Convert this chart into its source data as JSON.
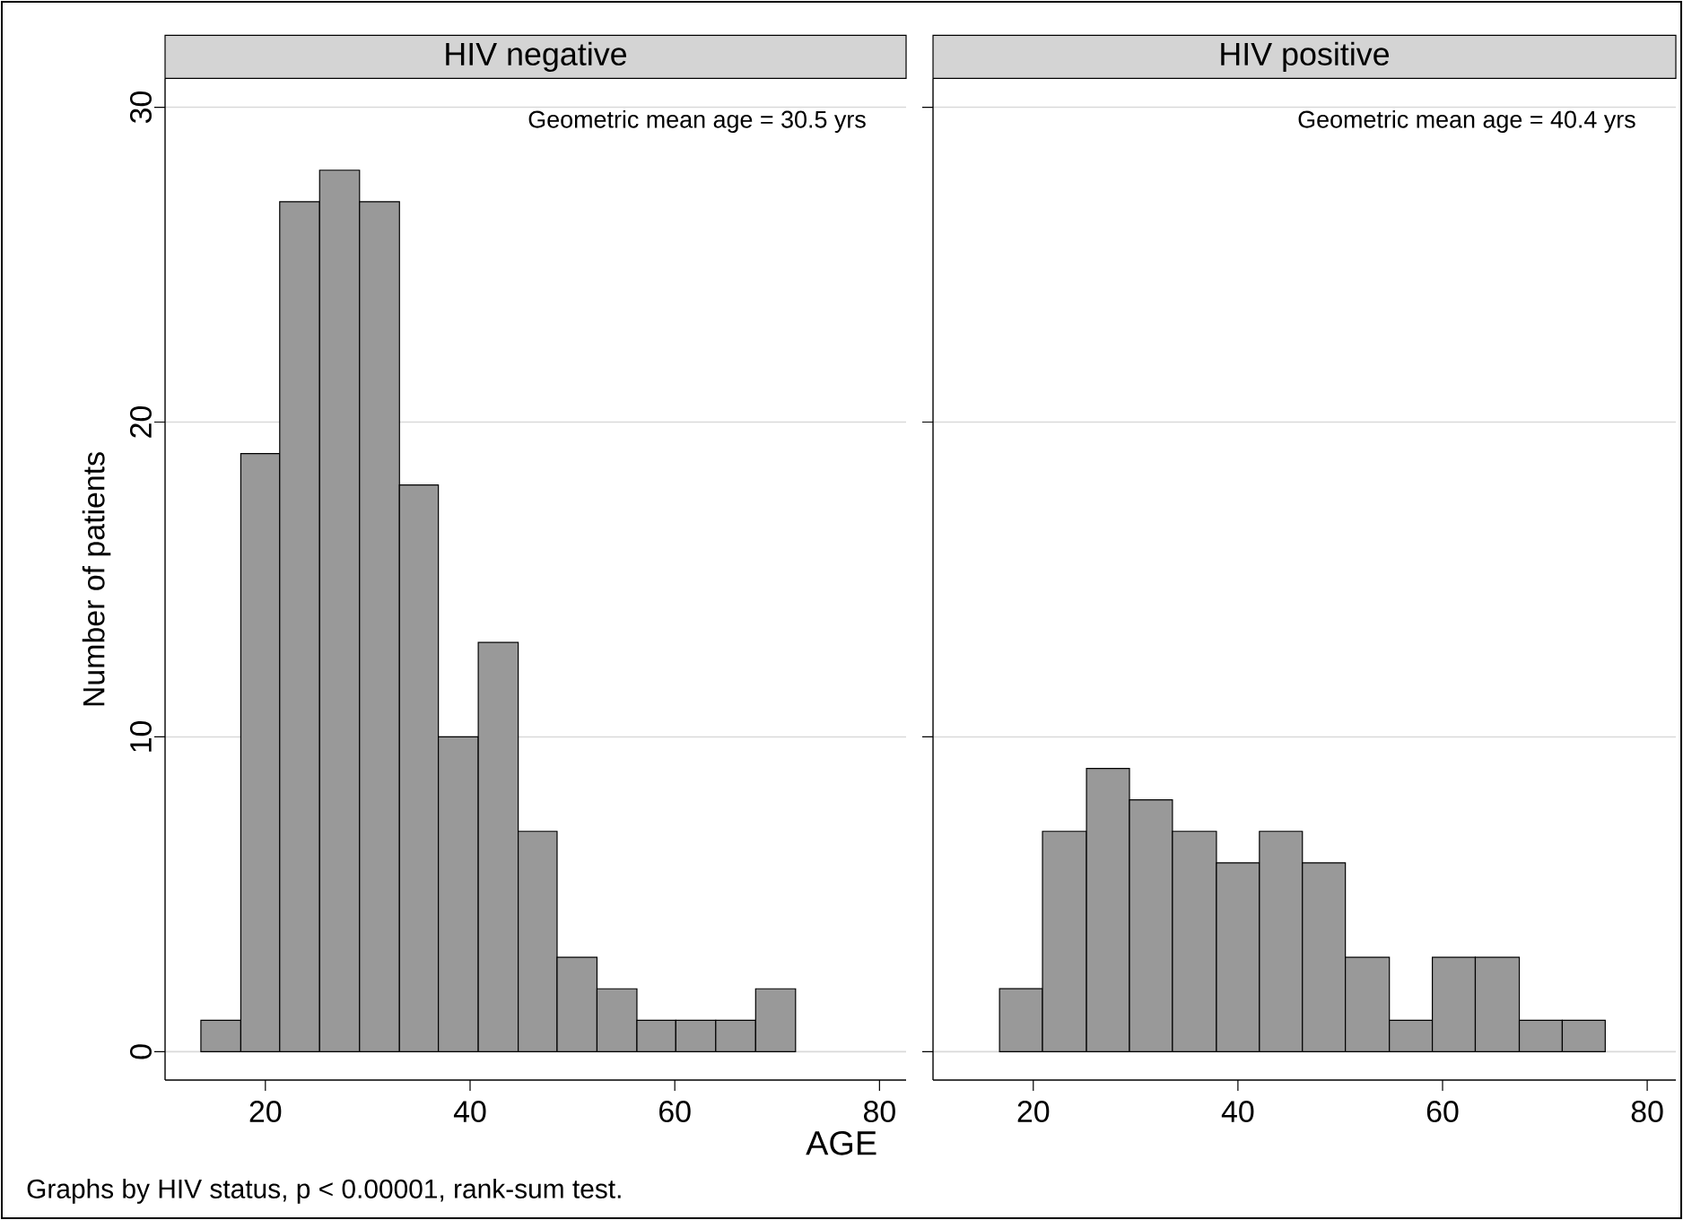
{
  "chart_data": [
    {
      "type": "histogram",
      "title": "HIV negative",
      "xlabel": "AGE",
      "ylabel": "Number of patients",
      "bins": [
        13.7,
        17.6,
        21.4,
        25.3,
        29.2,
        33.1,
        36.9,
        40.8,
        44.7,
        48.5,
        52.4,
        56.3,
        60.1,
        64.0,
        67.9,
        71.8
      ],
      "values": [
        1,
        19,
        27,
        28,
        27,
        18,
        10,
        13,
        7,
        3,
        2,
        1,
        1,
        1,
        2
      ],
      "color": "#999999",
      "xlim": [
        10.2,
        82.6
      ],
      "ylim": [
        -0.9,
        30.9
      ],
      "xticks": [
        20,
        40,
        60,
        80
      ],
      "yticks": [
        0,
        10,
        20,
        30
      ],
      "grid": "y",
      "annotations": [
        "Geometric mean age = 30.5 yrs",
        "Graphs by HIV status, p < 0.00001, rank-sum test."
      ]
    },
    {
      "type": "histogram",
      "title": "HIV positive",
      "bins": [
        16.7,
        20.9,
        25.2,
        29.4,
        33.6,
        37.9,
        42.1,
        46.3,
        50.5,
        54.8,
        59.0,
        63.2,
        67.5,
        71.7,
        75.9
      ],
      "values": [
        2,
        7,
        9,
        8,
        7,
        6,
        7,
        6,
        3,
        1,
        3,
        3,
        1,
        1
      ],
      "color": "#999999",
      "xlim": [
        10.2,
        82.8
      ],
      "ylim": [
        -0.9,
        30.9
      ],
      "xticks": [
        20,
        40,
        60,
        80
      ],
      "yticks": [
        0,
        10,
        20,
        30
      ],
      "grid": "y",
      "tick_labels": "x",
      "annotations": [
        "Geometric mean age = 40.4 yrs"
      ]
    }
  ]
}
